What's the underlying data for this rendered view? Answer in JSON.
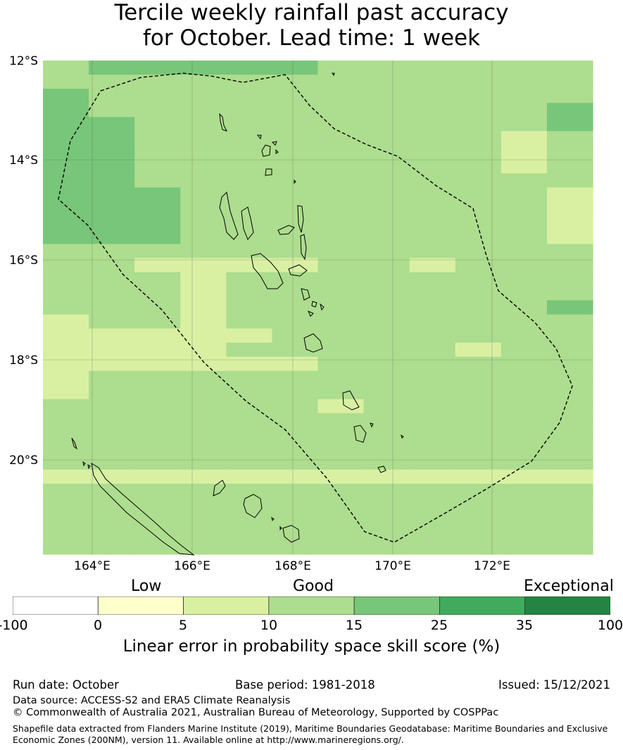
{
  "title_line1": "Tercile weekly rainfall past accuracy",
  "title_line2": "for October. Lead time: 1 week",
  "lat_labels": [
    "12°S",
    "14°S",
    "16°S",
    "18°S",
    "20°S"
  ],
  "lon_labels": [
    "164°E",
    "166°E",
    "168°E",
    "170°E",
    "172°E"
  ],
  "scale_words": [
    "Low",
    "Good",
    "Exceptional"
  ],
  "colorbar": {
    "ticks": [
      "-100",
      "0",
      "5",
      "10",
      "15",
      "25",
      "35",
      "100"
    ],
    "colors": [
      "#ffffff",
      "#ffffcc",
      "#d9f0a3",
      "#addd8e",
      "#78c679",
      "#41ab5d",
      "#238443"
    ],
    "label": "Linear error in probability space skill score (%)"
  },
  "grid_colors": [
    "#d9f0a3",
    "#addd8e",
    "#78c679"
  ],
  "grid_cells": [
    "122222111111",
    "111111111111",
    "211111111111",
    "211111111112",
    "221111111112",
    "221111111101",
    "221111111101",
    "221111111101",
    "221111111111",
    "222111111110",
    "222111111110",
    "222111111110",
    "222111111110",
    "111111111111",
    "110000110111",
    "111011111111",
    "111011111111",
    "111011111112",
    "011011111111",
    "000001111111",
    "000011111011",
    "000000111111",
    "011111111111",
    "011111111111",
    "111111011111",
    "111111111111",
    "111111111111",
    "111111111111",
    "111111111111",
    "000000000000",
    "111111111111",
    "111111111111",
    "111111111111",
    "111111111111",
    "111111111111"
  ],
  "footer": {
    "run_date": "Run date: October",
    "base_period": "Base period: 1981-2018",
    "issued": "Issued: 15/12/2021",
    "data_source": "Data source: ACCESS-S2 and ERA5 Climate Reanalysis",
    "copyright": "© Commonwealth of Australia 2021, Australian Bureau of Meteorology, Supported by COSPPac",
    "shapefile_line1": "Shapefile data extracted from Flanders Marine Institute (2019), Maritime Boundaries Geodatabase: Maritime Boundaries and Exclusive",
    "shapefile_line2": "Economic Zones (200NM), version 11. Available online at http://www.marineregions.org/."
  }
}
